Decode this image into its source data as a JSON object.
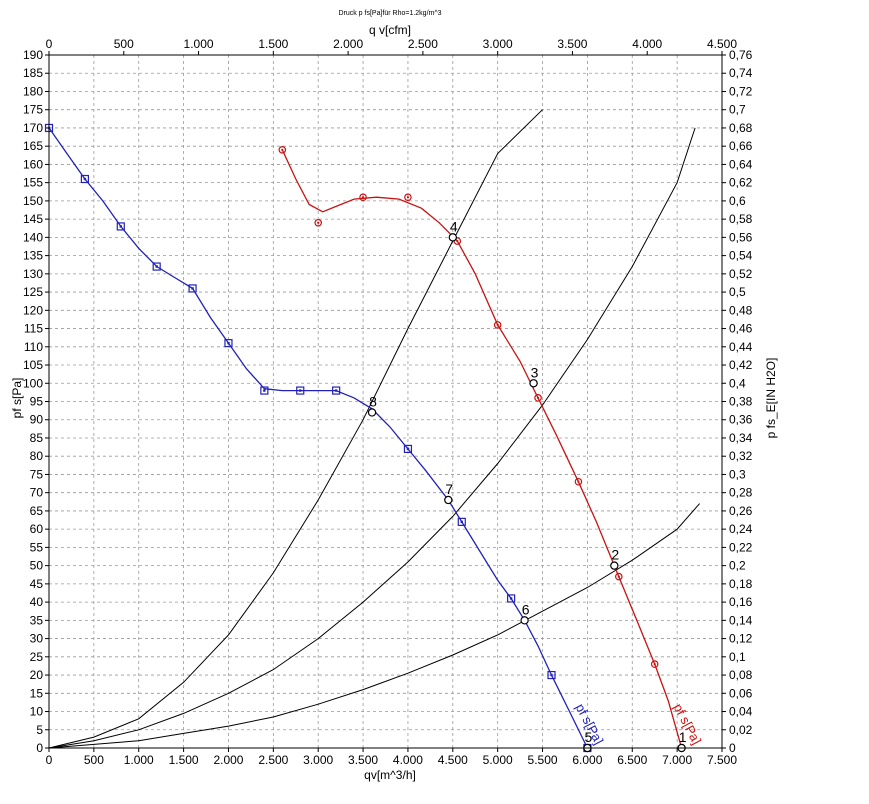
{
  "chart_data": {
    "type": "line",
    "title": "Druck p fs[Pa]für Rho=1.2kg/m^3",
    "xlabel_bottom": "qv[m^3/h]",
    "xlabel_top": "q v[cfm]",
    "ylabel_left": "pf s[Pa]",
    "ylabel_right": "p fs_E[IN H2O]",
    "xlim": [
      0,
      7500
    ],
    "ylim": [
      0,
      190
    ],
    "x_ticks": [
      0,
      500,
      1000,
      1500,
      2000,
      2500,
      3000,
      3500,
      4000,
      4500,
      5000,
      5500,
      6000,
      6500,
      7000,
      7500
    ],
    "x_tick_labels": [
      "0",
      "500",
      "1.000",
      "1.500",
      "2.000",
      "2.500",
      "3.000",
      "3.500",
      "4.000",
      "4.500",
      "5.000",
      "5.500",
      "6.000",
      "6.500",
      "7.000",
      "7.500"
    ],
    "y_ticks": [
      0,
      5,
      10,
      15,
      20,
      25,
      30,
      35,
      40,
      45,
      50,
      55,
      60,
      65,
      70,
      75,
      80,
      85,
      90,
      95,
      100,
      105,
      110,
      115,
      120,
      125,
      130,
      135,
      140,
      145,
      150,
      155,
      160,
      165,
      170,
      175,
      180,
      185,
      190
    ],
    "top_ticks": [
      0,
      500,
      1000,
      1500,
      2000,
      2500,
      3000,
      3500,
      4000,
      4500
    ],
    "top_tick_labels": [
      "0",
      "500",
      "1.000",
      "1.500",
      "2.000",
      "2.500",
      "3.000",
      "3.500",
      "4.000",
      "4.500"
    ],
    "right_ticks": [
      0,
      0.02,
      0.04,
      0.06,
      0.08,
      0.1,
      0.12,
      0.14,
      0.16,
      0.18,
      0.2,
      0.22,
      0.24,
      0.26,
      0.28,
      0.3,
      0.32,
      0.34,
      0.36,
      0.38,
      0.4,
      0.42,
      0.44,
      0.46,
      0.48,
      0.5,
      0.52,
      0.54,
      0.56,
      0.58,
      0.6,
      0.62,
      0.64,
      0.66,
      0.68,
      0.7,
      0.72,
      0.74,
      0.76
    ],
    "right_tick_labels": [
      "0",
      "0,02",
      "0,04",
      "0,06",
      "0,08",
      "0,1",
      "0,12",
      "0,14",
      "0,16",
      "0,18",
      "0,2",
      "0,22",
      "0,24",
      "0,26",
      "0,28",
      "0,3",
      "0,32",
      "0,34",
      "0,36",
      "0,38",
      "0,4",
      "0,42",
      "0,44",
      "0,46",
      "0,48",
      "0,5",
      "0,52",
      "0,54",
      "0,56",
      "0,58",
      "0,6",
      "0,62",
      "0,64",
      "0,66",
      "0,68",
      "0,7",
      "0,72",
      "0,74",
      "0,76"
    ],
    "grid": true,
    "series": [
      {
        "name": "pf s[Pa]",
        "color": "#cc1111",
        "marker": "circle",
        "points": [
          [
            3000,
            144
          ],
          [
            2600,
            164
          ],
          [
            3500,
            151
          ],
          [
            4000,
            151
          ],
          [
            4550,
            139
          ],
          [
            5000,
            116
          ],
          [
            5450,
            96
          ],
          [
            5900,
            73
          ],
          [
            6350,
            47
          ],
          [
            6750,
            23
          ],
          [
            7050,
            0
          ]
        ],
        "curve": [
          [
            2600,
            164
          ],
          [
            2750,
            156
          ],
          [
            2900,
            149
          ],
          [
            3050,
            147
          ],
          [
            3200,
            148.5
          ],
          [
            3400,
            150.5
          ],
          [
            3650,
            151
          ],
          [
            3900,
            150.5
          ],
          [
            4150,
            148
          ],
          [
            4350,
            144
          ],
          [
            4550,
            139
          ],
          [
            4750,
            130
          ],
          [
            5000,
            116
          ],
          [
            5250,
            106
          ],
          [
            5450,
            96
          ],
          [
            5650,
            86
          ],
          [
            5900,
            73
          ],
          [
            6100,
            62
          ],
          [
            6300,
            50
          ],
          [
            6350,
            47
          ],
          [
            6550,
            35
          ],
          [
            6750,
            23
          ],
          [
            6900,
            13
          ],
          [
            7050,
            0
          ]
        ]
      },
      {
        "name": "pf s[Pa]",
        "color": "#2222bb",
        "marker": "square",
        "points": [
          [
            0,
            170
          ],
          [
            400,
            156
          ],
          [
            800,
            143
          ],
          [
            1200,
            132
          ],
          [
            1600,
            126
          ],
          [
            2000,
            111
          ],
          [
            2400,
            98
          ],
          [
            2800,
            98
          ],
          [
            3200,
            98
          ],
          [
            4000,
            82
          ],
          [
            4600,
            62
          ],
          [
            5150,
            41
          ],
          [
            5600,
            20
          ],
          [
            6000,
            0
          ]
        ],
        "curve": [
          [
            0,
            170
          ],
          [
            200,
            163
          ],
          [
            400,
            156
          ],
          [
            600,
            150
          ],
          [
            800,
            143
          ],
          [
            1000,
            137
          ],
          [
            1200,
            132
          ],
          [
            1400,
            129
          ],
          [
            1600,
            126
          ],
          [
            1800,
            118
          ],
          [
            2000,
            111
          ],
          [
            2200,
            104
          ],
          [
            2400,
            98.5
          ],
          [
            2600,
            98
          ],
          [
            2800,
            98
          ],
          [
            3000,
            98
          ],
          [
            3200,
            98
          ],
          [
            3400,
            96
          ],
          [
            3600,
            93
          ],
          [
            3800,
            88
          ],
          [
            4000,
            82
          ],
          [
            4200,
            76
          ],
          [
            4450,
            68
          ],
          [
            4600,
            62
          ],
          [
            4800,
            54
          ],
          [
            5000,
            46
          ],
          [
            5150,
            41
          ],
          [
            5300,
            35
          ],
          [
            5450,
            28
          ],
          [
            5600,
            20
          ],
          [
            5800,
            10
          ],
          [
            6000,
            0
          ]
        ]
      }
    ],
    "system_curves": [
      {
        "curve": [
          [
            0,
            0
          ],
          [
            500,
            1
          ],
          [
            1000,
            2
          ],
          [
            1500,
            4
          ],
          [
            2000,
            6
          ],
          [
            2500,
            8.5
          ],
          [
            3000,
            12
          ],
          [
            3500,
            16
          ],
          [
            4000,
            20.5
          ],
          [
            4500,
            25.5
          ],
          [
            5000,
            31
          ],
          [
            5500,
            37.5
          ],
          [
            6000,
            44
          ],
          [
            6500,
            51.5
          ],
          [
            7000,
            60
          ],
          [
            7250,
            67
          ]
        ]
      },
      {
        "curve": [
          [
            0,
            0
          ],
          [
            500,
            2
          ],
          [
            1000,
            5
          ],
          [
            1500,
            9.5
          ],
          [
            2000,
            15
          ],
          [
            2500,
            21.5
          ],
          [
            3000,
            30
          ],
          [
            3500,
            40
          ],
          [
            4000,
            51
          ],
          [
            4500,
            63.5
          ],
          [
            5000,
            78
          ],
          [
            5500,
            94
          ],
          [
            6000,
            112
          ],
          [
            6500,
            132
          ],
          [
            7000,
            155
          ],
          [
            7200,
            170
          ]
        ]
      },
      {
        "curve": [
          [
            0,
            0
          ],
          [
            500,
            3
          ],
          [
            1000,
            8
          ],
          [
            1500,
            18
          ],
          [
            2000,
            31
          ],
          [
            2500,
            48
          ],
          [
            3000,
            68
          ],
          [
            3500,
            90
          ],
          [
            4000,
            115
          ],
          [
            4500,
            139
          ],
          [
            5000,
            163
          ],
          [
            5500,
            175
          ]
        ]
      }
    ],
    "operating_points": [
      {
        "label": "1",
        "x": 7050,
        "y": 0
      },
      {
        "label": "2",
        "x": 6300,
        "y": 50
      },
      {
        "label": "3",
        "x": 5400,
        "y": 100
      },
      {
        "label": "4",
        "x": 4500,
        "y": 140
      },
      {
        "label": "5",
        "x": 6000,
        "y": 0
      },
      {
        "label": "6",
        "x": 5300,
        "y": 35
      },
      {
        "label": "7",
        "x": 4450,
        "y": 68
      },
      {
        "label": "8",
        "x": 3600,
        "y": 92
      }
    ],
    "curve_labels": [
      {
        "text": "pf s[Pa]",
        "color": "#2222bb",
        "x": 5980,
        "y": 6
      },
      {
        "text": "pf s[Pa]",
        "color": "#cc1111",
        "x": 7070,
        "y": 6
      }
    ]
  }
}
